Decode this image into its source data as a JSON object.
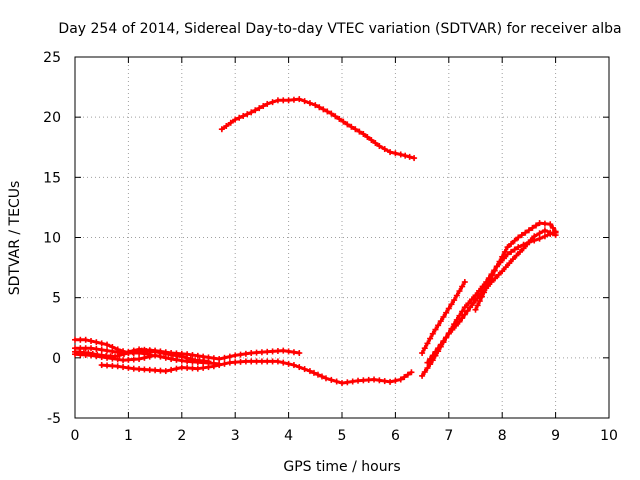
{
  "chart_data": {
    "type": "scatter",
    "title": "Day 254 of 2014, Sidereal Day-to-day VTEC variation (SDTVAR) for receiver alba",
    "xlabel": "GPS time / hours",
    "ylabel": "SDTVAR / TECUs",
    "xlim": [
      0,
      10
    ],
    "ylim": [
      -5,
      25
    ],
    "xticks": [
      "0",
      "1",
      "2",
      "3",
      "4",
      "5",
      "6",
      "7",
      "8",
      "9",
      "10"
    ],
    "yticks": [
      "-5",
      "0",
      "5",
      "10",
      "15",
      "20",
      "25"
    ],
    "grid": true,
    "legend": "none",
    "color": "#ff0000",
    "series": [
      {
        "name": "arc-1",
        "x": [
          2.75,
          3.0,
          3.3,
          3.6,
          3.8,
          4.0,
          4.2,
          4.5,
          4.8,
          5.1,
          5.4,
          5.7,
          5.9,
          6.1,
          6.35
        ],
        "y": [
          19.0,
          19.8,
          20.4,
          21.1,
          21.4,
          21.4,
          21.5,
          21.0,
          20.3,
          19.4,
          18.6,
          17.6,
          17.1,
          16.9,
          16.6
        ]
      },
      {
        "name": "arc-2",
        "x": [
          0.0,
          0.2,
          0.4,
          0.6,
          0.8,
          1.0,
          1.2,
          1.4
        ],
        "y": [
          1.5,
          1.5,
          1.3,
          1.1,
          0.7,
          0.4,
          0.4,
          0.3
        ]
      },
      {
        "name": "arc-3",
        "x": [
          0.0,
          0.3,
          0.6,
          0.9,
          1.2,
          1.5,
          1.8,
          2.1,
          2.4,
          2.7,
          3.0,
          3.3,
          3.6,
          3.9,
          4.2
        ],
        "y": [
          0.8,
          0.8,
          0.6,
          0.4,
          0.7,
          0.6,
          0.4,
          0.3,
          0.1,
          -0.1,
          0.2,
          0.4,
          0.5,
          0.6,
          0.4
        ]
      },
      {
        "name": "arc-4",
        "x": [
          0.0,
          0.3,
          0.6,
          0.9,
          1.2,
          1.5,
          1.8,
          2.1,
          2.4,
          2.7
        ],
        "y": [
          0.3,
          0.2,
          0.0,
          -0.2,
          -0.1,
          0.2,
          -0.1,
          -0.3,
          -0.4,
          -0.5
        ]
      },
      {
        "name": "arc-5",
        "x": [
          0.0,
          0.25,
          0.5,
          0.75,
          1.0,
          1.25,
          1.5,
          1.75,
          2.0,
          2.25,
          2.5
        ],
        "y": [
          0.5,
          0.4,
          0.2,
          0.1,
          0.4,
          0.6,
          0.5,
          0.3,
          0.1,
          -0.2,
          -0.3
        ]
      },
      {
        "name": "arc-6",
        "x": [
          0.5,
          0.8,
          1.1,
          1.4,
          1.7,
          2.0,
          2.3,
          2.6,
          2.9,
          3.2,
          3.5,
          3.8,
          4.1,
          4.4,
          4.7,
          5.0,
          5.3,
          5.6,
          5.9,
          6.1,
          6.3
        ],
        "y": [
          -0.6,
          -0.7,
          -0.9,
          -1.0,
          -1.1,
          -0.8,
          -0.9,
          -0.7,
          -0.4,
          -0.3,
          -0.3,
          -0.3,
          -0.6,
          -1.1,
          -1.7,
          -2.1,
          -1.9,
          -1.8,
          -2.0,
          -1.8,
          -1.2
        ]
      },
      {
        "name": "arc-7",
        "x": [
          6.5,
          6.7,
          6.9,
          7.1,
          7.3,
          7.5,
          7.7,
          7.9,
          8.1,
          8.3,
          8.5,
          8.7,
          8.9,
          9.0
        ],
        "y": [
          -1.5,
          -0.2,
          1.3,
          2.8,
          4.2,
          5.2,
          6.3,
          7.6,
          8.6,
          9.2,
          9.6,
          9.9,
          10.3,
          10.4
        ]
      },
      {
        "name": "arc-8",
        "x": [
          6.6,
          6.8,
          7.0,
          7.2,
          7.4,
          7.6,
          7.8,
          8.0,
          8.2,
          8.4,
          8.6,
          8.8,
          9.0
        ],
        "y": [
          -0.4,
          0.8,
          2.0,
          3.0,
          4.2,
          5.3,
          6.3,
          7.2,
          8.2,
          9.1,
          10.1,
          10.6,
          10.2
        ]
      },
      {
        "name": "arc-9",
        "x": [
          6.5,
          6.7,
          6.9,
          7.1,
          7.3
        ],
        "y": [
          0.4,
          2.0,
          3.4,
          4.8,
          6.3
        ]
      },
      {
        "name": "arc-10",
        "x": [
          7.5,
          7.7,
          7.9,
          8.1,
          8.3,
          8.5,
          8.7,
          8.9,
          9.0
        ],
        "y": [
          4.0,
          5.8,
          7.6,
          9.2,
          10.0,
          10.6,
          11.2,
          11.1,
          10.5
        ]
      }
    ]
  }
}
